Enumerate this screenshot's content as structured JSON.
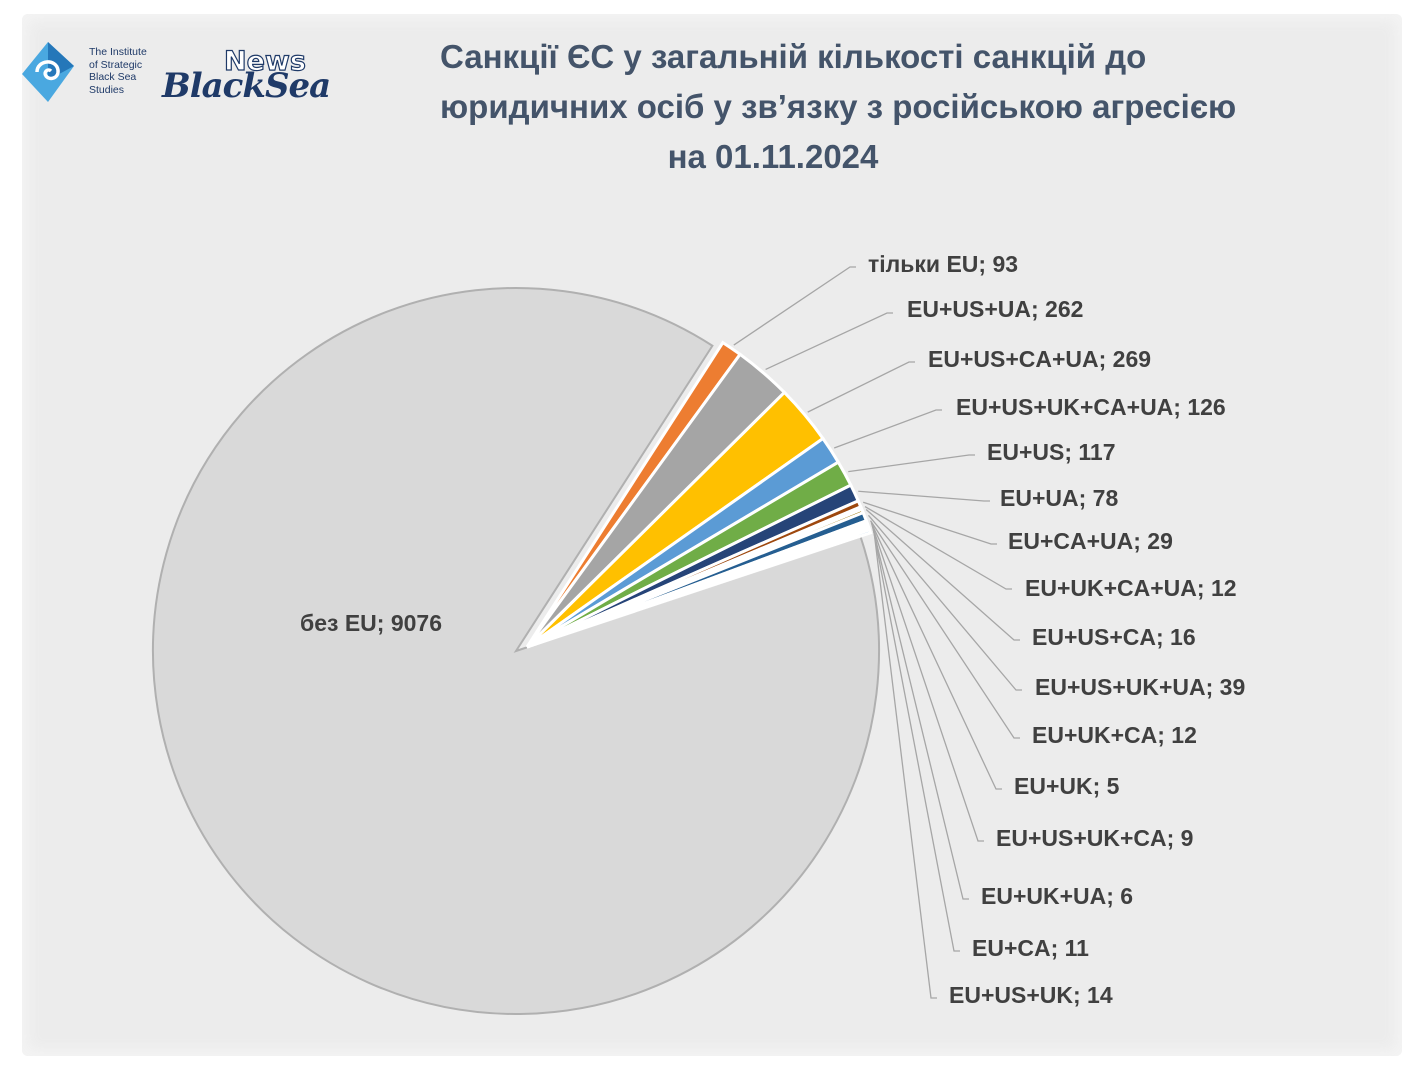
{
  "header": {
    "org_name": "The Institute\nof Strategic\nBlack Sea\nStudies",
    "news_word": "News",
    "blacksea_word": "BlackSea"
  },
  "chart_data": {
    "type": "pie",
    "title_lines": [
      "Санкції ЄС у загальній кількості санкцій до",
      "юридичних осіб у зв’язку з російською агресією",
      "на 01.11.2024"
    ],
    "legend": "none",
    "slices": [
      {
        "label": "без EU",
        "value": 9076,
        "color": "#d9d9d9",
        "text": "без EU; 9076"
      },
      {
        "label": "тільки EU",
        "value": 93,
        "color": "#ed7d31",
        "text": "тільки EU; 93"
      },
      {
        "label": "EU+US+UA",
        "value": 262,
        "color": "#a5a5a5",
        "text": "EU+US+UA; 262"
      },
      {
        "label": "EU+US+CA+UA",
        "value": 269,
        "color": "#ffc000",
        "text": "EU+US+CA+UA; 269"
      },
      {
        "label": "EU+US+UK+CA+UA",
        "value": 126,
        "color": "#5b9bd5",
        "text": "EU+US+UK+CA+UA; 126"
      },
      {
        "label": "EU+US",
        "value": 117,
        "color": "#70ad47",
        "text": "EU+US; 117"
      },
      {
        "label": "EU+UA",
        "value": 78,
        "color": "#264478",
        "text": "EU+UA; 78"
      },
      {
        "label": "EU+CA+UA",
        "value": 29,
        "color": "#9e480e",
        "text": "EU+CA+UA; 29"
      },
      {
        "label": "EU+UK+CA+UA",
        "value": 12,
        "color": "#636363",
        "text": "EU+UK+CA+UA; 12"
      },
      {
        "label": "EU+US+CA",
        "value": 16,
        "color": "#997300",
        "text": "EU+US+CA; 16"
      },
      {
        "label": "EU+US+UK+UA",
        "value": 39,
        "color": "#255e91",
        "text": "EU+US+UK+UA; 39"
      },
      {
        "label": "EU+UK+CA",
        "value": 12,
        "color": "#43682b",
        "text": "EU+UK+CA; 12"
      },
      {
        "label": "EU+UK",
        "value": 5,
        "color": "#698ed0",
        "text": "EU+UK; 5"
      },
      {
        "label": "EU+US+UK+CA",
        "value": 9,
        "color": "#f1975a",
        "text": "EU+US+UK+CA; 9"
      },
      {
        "label": "EU+UK+UA",
        "value": 6,
        "color": "#b7b7b7",
        "text": "EU+UK+UA; 6"
      },
      {
        "label": "EU+CA",
        "value": 11,
        "color": "#ffcd33",
        "text": "EU+CA; 11"
      },
      {
        "label": "EU+US+UK",
        "value": 14,
        "color": "#7cafdd",
        "text": "EU+US+UK; 14"
      }
    ]
  }
}
